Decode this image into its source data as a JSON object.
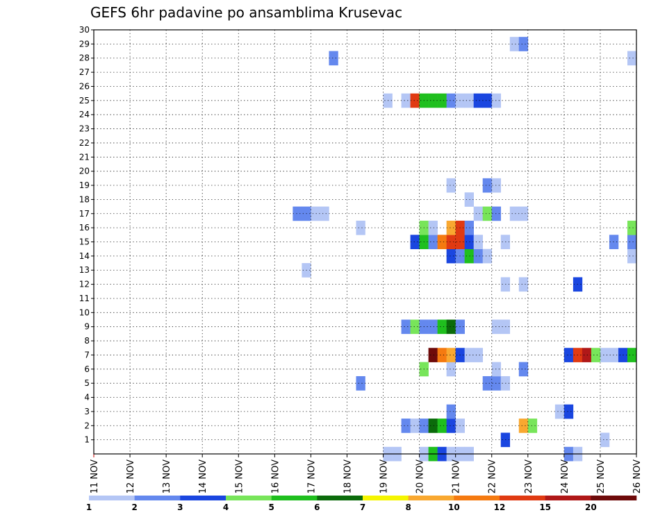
{
  "chart_data": {
    "type": "heatmap",
    "title": "GEFS 6hr padavine po ansamblima Krusevac",
    "x_tick_labels": [
      "11 NOV",
      "12 NOV",
      "13 NOV",
      "14 NOV",
      "15 NOV",
      "16 NOV",
      "17 NOV",
      "18 NOV",
      "19 NOV",
      "20 NOV",
      "21 NOV",
      "22 NOV",
      "23 NOV",
      "24 NOV",
      "25 NOV",
      "26 NOV"
    ],
    "x_time_step_hours": 6,
    "x_steps_total": 60,
    "y_range": [
      0,
      30
    ],
    "y_ticks": [
      1,
      2,
      3,
      4,
      5,
      6,
      7,
      8,
      9,
      10,
      11,
      12,
      13,
      14,
      15,
      16,
      17,
      18,
      19,
      20,
      21,
      22,
      23,
      24,
      25,
      26,
      27,
      28,
      29,
      30
    ],
    "grid": true,
    "colorbar": {
      "labels": [
        "1",
        "2",
        "3",
        "4",
        "5",
        "6",
        "7",
        "8",
        "10",
        "12",
        "15",
        "20"
      ],
      "colors": [
        "#b4c6f5",
        "#6488ee",
        "#1a46e0",
        "#78e55a",
        "#1fbf1e",
        "#0b6b0b",
        "#f5f500",
        "#f9a830",
        "#f57a10",
        "#e03a12",
        "#b01818",
        "#6e0a0a"
      ]
    },
    "cells": [
      {
        "member": 0,
        "step": 32,
        "value": 1
      },
      {
        "member": 0,
        "step": 33,
        "value": 1
      },
      {
        "member": 0,
        "step": 36,
        "value": 1
      },
      {
        "member": 0,
        "step": 37,
        "value": 5
      },
      {
        "member": 0,
        "step": 38,
        "value": 3
      },
      {
        "member": 0,
        "step": 39,
        "value": 1
      },
      {
        "member": 0,
        "step": 40,
        "value": 1
      },
      {
        "member": 0,
        "step": 41,
        "value": 1
      },
      {
        "member": 0,
        "step": 52,
        "value": 2
      },
      {
        "member": 0,
        "step": 53,
        "value": 1
      },
      {
        "member": 1,
        "step": 45,
        "value": 3
      },
      {
        "member": 1,
        "step": 56,
        "value": 1
      },
      {
        "member": 2,
        "step": 34,
        "value": 2
      },
      {
        "member": 2,
        "step": 35,
        "value": 1
      },
      {
        "member": 2,
        "step": 36,
        "value": 2
      },
      {
        "member": 2,
        "step": 37,
        "value": 6
      },
      {
        "member": 2,
        "step": 38,
        "value": 5
      },
      {
        "member": 2,
        "step": 39,
        "value": 3
      },
      {
        "member": 2,
        "step": 40,
        "value": 1
      },
      {
        "member": 2,
        "step": 47,
        "value": 8
      },
      {
        "member": 2,
        "step": 48,
        "value": 4
      },
      {
        "member": 3,
        "step": 39,
        "value": 2
      },
      {
        "member": 3,
        "step": 51,
        "value": 1
      },
      {
        "member": 3,
        "step": 52,
        "value": 3
      },
      {
        "member": 5,
        "step": 29,
        "value": 2
      },
      {
        "member": 5,
        "step": 43,
        "value": 2
      },
      {
        "member": 5,
        "step": 44,
        "value": 2
      },
      {
        "member": 5,
        "step": 45,
        "value": 1
      },
      {
        "member": 6,
        "step": 36,
        "value": 4
      },
      {
        "member": 6,
        "step": 39,
        "value": 1
      },
      {
        "member": 6,
        "step": 44,
        "value": 1
      },
      {
        "member": 6,
        "step": 47,
        "value": 2
      },
      {
        "member": 7,
        "step": 37,
        "value": 20
      },
      {
        "member": 7,
        "step": 38,
        "value": 10
      },
      {
        "member": 7,
        "step": 39,
        "value": 8
      },
      {
        "member": 7,
        "step": 40,
        "value": 3
      },
      {
        "member": 7,
        "step": 41,
        "value": 1
      },
      {
        "member": 7,
        "step": 42,
        "value": 1
      },
      {
        "member": 7,
        "step": 52,
        "value": 3
      },
      {
        "member": 7,
        "step": 53,
        "value": 12
      },
      {
        "member": 7,
        "step": 54,
        "value": 15
      },
      {
        "member": 7,
        "step": 55,
        "value": 4
      },
      {
        "member": 7,
        "step": 56,
        "value": 1
      },
      {
        "member": 7,
        "step": 57,
        "value": 1
      },
      {
        "member": 7,
        "step": 58,
        "value": 3
      },
      {
        "member": 7,
        "step": 59,
        "value": 5
      },
      {
        "member": 9,
        "step": 34,
        "value": 2
      },
      {
        "member": 9,
        "step": 35,
        "value": 4
      },
      {
        "member": 9,
        "step": 36,
        "value": 2
      },
      {
        "member": 9,
        "step": 37,
        "value": 2
      },
      {
        "member": 9,
        "step": 38,
        "value": 5
      },
      {
        "member": 9,
        "step": 39,
        "value": 6
      },
      {
        "member": 9,
        "step": 40,
        "value": 2
      },
      {
        "member": 9,
        "step": 44,
        "value": 1
      },
      {
        "member": 9,
        "step": 45,
        "value": 1
      },
      {
        "member": 12,
        "step": 45,
        "value": 1
      },
      {
        "member": 12,
        "step": 47,
        "value": 1
      },
      {
        "member": 12,
        "step": 53,
        "value": 3
      },
      {
        "member": 13,
        "step": 23,
        "value": 1
      },
      {
        "member": 14,
        "step": 39,
        "value": 3
      },
      {
        "member": 14,
        "step": 40,
        "value": 2
      },
      {
        "member": 14,
        "step": 41,
        "value": 5
      },
      {
        "member": 14,
        "step": 42,
        "value": 2
      },
      {
        "member": 14,
        "step": 43,
        "value": 1
      },
      {
        "member": 14,
        "step": 59,
        "value": 1
      },
      {
        "member": 15,
        "step": 35,
        "value": 3
      },
      {
        "member": 15,
        "step": 36,
        "value": 5
      },
      {
        "member": 15,
        "step": 37,
        "value": 2
      },
      {
        "member": 15,
        "step": 38,
        "value": 10
      },
      {
        "member": 15,
        "step": 39,
        "value": 12
      },
      {
        "member": 15,
        "step": 40,
        "value": 12
      },
      {
        "member": 15,
        "step": 41,
        "value": 3
      },
      {
        "member": 15,
        "step": 42,
        "value": 1
      },
      {
        "member": 15,
        "step": 45,
        "value": 1
      },
      {
        "member": 15,
        "step": 57,
        "value": 2
      },
      {
        "member": 15,
        "step": 59,
        "value": 2
      },
      {
        "member": 16,
        "step": 29,
        "value": 1
      },
      {
        "member": 16,
        "step": 36,
        "value": 4
      },
      {
        "member": 16,
        "step": 37,
        "value": 1
      },
      {
        "member": 16,
        "step": 39,
        "value": 8
      },
      {
        "member": 16,
        "step": 40,
        "value": 12
      },
      {
        "member": 16,
        "step": 41,
        "value": 2
      },
      {
        "member": 16,
        "step": 59,
        "value": 4
      },
      {
        "member": 17,
        "step": 22,
        "value": 2
      },
      {
        "member": 17,
        "step": 23,
        "value": 2
      },
      {
        "member": 17,
        "step": 24,
        "value": 1
      },
      {
        "member": 17,
        "step": 25,
        "value": 1
      },
      {
        "member": 17,
        "step": 42,
        "value": 1
      },
      {
        "member": 17,
        "step": 43,
        "value": 4
      },
      {
        "member": 17,
        "step": 44,
        "value": 2
      },
      {
        "member": 17,
        "step": 46,
        "value": 1
      },
      {
        "member": 17,
        "step": 47,
        "value": 1
      },
      {
        "member": 18,
        "step": 41,
        "value": 1
      },
      {
        "member": 19,
        "step": 39,
        "value": 1
      },
      {
        "member": 19,
        "step": 43,
        "value": 2
      },
      {
        "member": 19,
        "step": 44,
        "value": 1
      },
      {
        "member": 25,
        "step": 32,
        "value": 1
      },
      {
        "member": 25,
        "step": 34,
        "value": 1
      },
      {
        "member": 25,
        "step": 35,
        "value": 12
      },
      {
        "member": 25,
        "step": 36,
        "value": 5
      },
      {
        "member": 25,
        "step": 37,
        "value": 5
      },
      {
        "member": 25,
        "step": 38,
        "value": 5
      },
      {
        "member": 25,
        "step": 39,
        "value": 2
      },
      {
        "member": 25,
        "step": 40,
        "value": 1
      },
      {
        "member": 25,
        "step": 41,
        "value": 1
      },
      {
        "member": 25,
        "step": 42,
        "value": 3
      },
      {
        "member": 25,
        "step": 43,
        "value": 3
      },
      {
        "member": 25,
        "step": 44,
        "value": 1
      },
      {
        "member": 28,
        "step": 26,
        "value": 2
      },
      {
        "member": 28,
        "step": 59,
        "value": 1
      },
      {
        "member": 29,
        "step": 46,
        "value": 1
      },
      {
        "member": 29,
        "step": 47,
        "value": 2
      }
    ]
  }
}
